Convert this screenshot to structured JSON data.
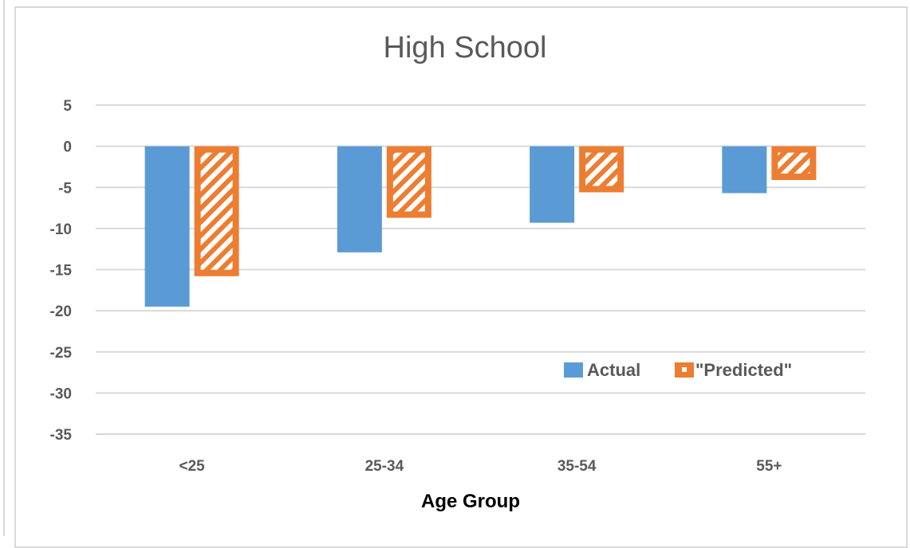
{
  "chart_data": {
    "type": "bar",
    "title": "High School",
    "xlabel": "Age Group",
    "ylabel": "",
    "categories": [
      "<25",
      "25-34",
      "35-54",
      "55+"
    ],
    "series": [
      {
        "name": "Actual",
        "values": [
          -19.5,
          -12.9,
          -9.3,
          -5.7
        ]
      },
      {
        "name": "\"Predicted\"",
        "values": [
          -15.8,
          -8.7,
          -5.6,
          -4.1
        ]
      }
    ],
    "ylim": [
      -35,
      5
    ],
    "yticks": [
      5,
      0,
      -5,
      -10,
      -15,
      -20,
      -25,
      -30,
      -35
    ],
    "grid": true,
    "legend_position": "bottom-right",
    "colors": {
      "Actual": "#5b9bd5",
      "Predicted": "#ed7d31",
      "hatch": "#ffffff"
    }
  }
}
